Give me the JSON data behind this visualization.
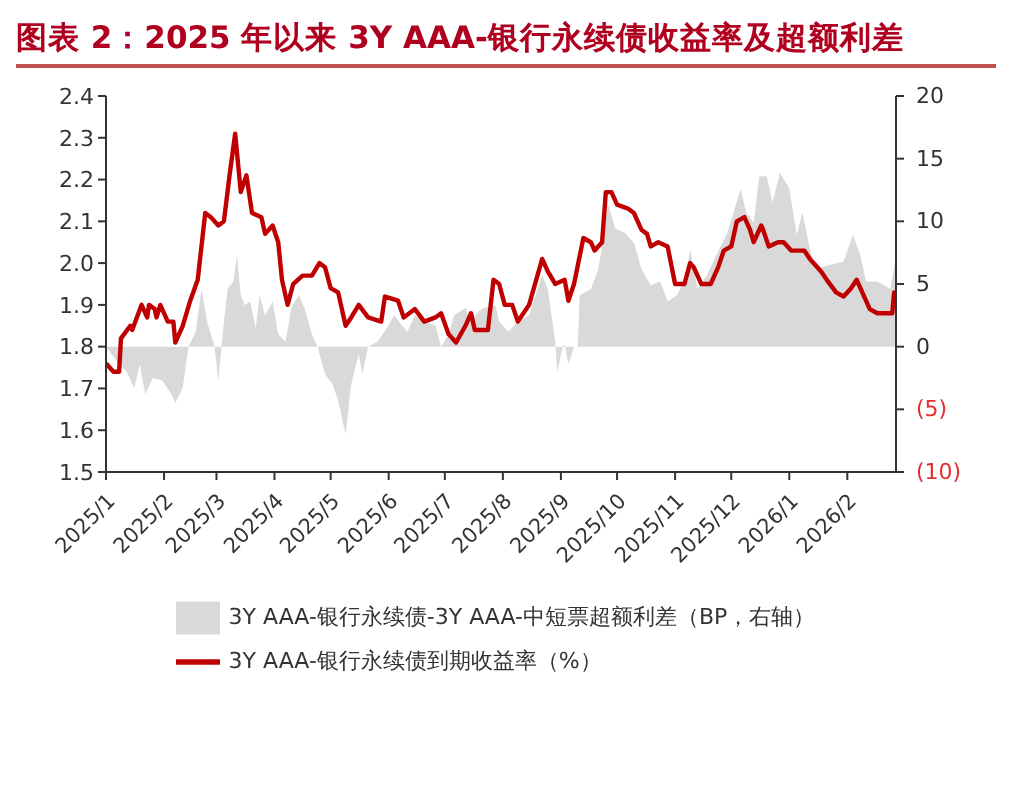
{
  "chart_data": {
    "type": "line",
    "title": "图表 2：2025 年以来 3Y AAA-银行永续债收益率及超额利差",
    "legend": "bottom",
    "marker": "none",
    "line_style": "solid",
    "grid": false,
    "xlim": [
      "2025-01-01",
      "2026-02-27"
    ],
    "xticks": [
      {
        "value": "2025-01-01",
        "label": "2025/1"
      },
      {
        "value": "2025-02-01",
        "label": "2025/2"
      },
      {
        "value": "2025-03-01",
        "label": "2025/3"
      },
      {
        "value": "2025-04-01",
        "label": "2025/4"
      },
      {
        "value": "2025-05-01",
        "label": "2025/5"
      },
      {
        "value": "2025-06-01",
        "label": "2025/6"
      },
      {
        "value": "2025-07-01",
        "label": "2025/7"
      },
      {
        "value": "2025-08-01",
        "label": "2025/8"
      },
      {
        "value": "2025-09-01",
        "label": "2025/9"
      },
      {
        "value": "2025-10-01",
        "label": "2025/10"
      },
      {
        "value": "2025-11-01",
        "label": "2025/11"
      },
      {
        "value": "2025-12-01",
        "label": "2025/12"
      },
      {
        "value": "2026-01-01",
        "label": "2026/1"
      },
      {
        "value": "2026-02-01",
        "label": "2026/2"
      }
    ],
    "ylim": [
      1.5,
      2.4
    ],
    "yticks": [
      1.5,
      1.6,
      1.7,
      1.8,
      1.9,
      {
        "value": 2,
        "label": "2.0"
      },
      2.1,
      2.2,
      2.3,
      2.4
    ],
    "y2lim": [
      -10,
      20
    ],
    "y2ticks": [
      {
        "value": -10,
        "label": "(10)"
      },
      {
        "value": -5,
        "label": "(5)"
      },
      0,
      5,
      10,
      15,
      20
    ],
    "series": [
      {
        "name": "3Y AAA-银行永续债-3Y AAA-中短票超额利差（BP，右轴）",
        "type": "area",
        "axis": "y2",
        "color": "#d9d9d9",
        "x": [
          "2025-01-01",
          "2025-01-07",
          "2025-01-12",
          "2025-01-16",
          "2025-01-19",
          "2025-01-22",
          "2025-01-26",
          "2025-01-31",
          "2025-02-05",
          "2025-02-07",
          "2025-02-11",
          "2025-02-14",
          "2025-02-18",
          "2025-02-21",
          "2025-02-24",
          "2025-02-26",
          "2025-02-28",
          "2025-03-02",
          "2025-03-05",
          "2025-03-07",
          "2025-03-10",
          "2025-03-12",
          "2025-03-14",
          "2025-03-16",
          "2025-03-19",
          "2025-03-22",
          "2025-03-24",
          "2025-03-27",
          "2025-03-31",
          "2025-04-03",
          "2025-04-07",
          "2025-04-10",
          "2025-04-14",
          "2025-04-17",
          "2025-04-21",
          "2025-04-24",
          "2025-04-28",
          "2025-05-02",
          "2025-05-05",
          "2025-05-09",
          "2025-05-12",
          "2025-05-16",
          "2025-05-18",
          "2025-05-21",
          "2025-05-26",
          "2025-06-01",
          "2025-06-04",
          "2025-06-08",
          "2025-06-11",
          "2025-06-15",
          "2025-06-20",
          "2025-06-26",
          "2025-06-29",
          "2025-07-03",
          "2025-07-06",
          "2025-07-12",
          "2025-07-15",
          "2025-07-19",
          "2025-07-22",
          "2025-07-28",
          "2025-07-30",
          "2025-08-04",
          "2025-08-09",
          "2025-08-15",
          "2025-08-18",
          "2025-08-22",
          "2025-08-25",
          "2025-08-29",
          "2025-08-30",
          "2025-09-02",
          "2025-09-03",
          "2025-09-05",
          "2025-09-08",
          "2025-09-10",
          "2025-09-11",
          "2025-09-17",
          "2025-09-21",
          "2025-09-24",
          "2025-09-26",
          "2025-09-30",
          "2025-10-05",
          "2025-10-10",
          "2025-10-14",
          "2025-10-19",
          "2025-10-24",
          "2025-10-28",
          "2025-11-02",
          "2025-11-07",
          "2025-11-09",
          "2025-11-13",
          "2025-11-18",
          "2025-11-23",
          "2025-11-29",
          "2025-12-06",
          "2025-12-09",
          "2025-12-13",
          "2025-12-16",
          "2025-12-20",
          "2025-12-23",
          "2025-12-27",
          "2026-01-01",
          "2026-01-05",
          "2026-01-08",
          "2026-01-12",
          "2026-01-15",
          "2026-01-22",
          "2026-01-30",
          "2026-02-04",
          "2026-02-08",
          "2026-02-11",
          "2026-02-17",
          "2026-02-24",
          "2026-02-27"
        ],
        "values": [
          0,
          -1.2,
          -2,
          -3.3,
          -1.4,
          -3.8,
          -2.5,
          -2.7,
          -3.8,
          -4.5,
          -3.3,
          0,
          1.2,
          4.6,
          2,
          1,
          0,
          -2.7,
          2,
          4.6,
          5.2,
          7.3,
          4.1,
          3.3,
          3.6,
          1.5,
          4.1,
          2.5,
          3.6,
          1,
          0.4,
          3.1,
          4.1,
          3.1,
          1,
          0,
          -2.2,
          -3,
          -4.3,
          -7,
          -3,
          -0.6,
          -2.2,
          0,
          0.4,
          1.7,
          2.5,
          1.7,
          1.2,
          2.5,
          2,
          1.7,
          0,
          1,
          2.5,
          3.1,
          2,
          2.8,
          3.1,
          3.3,
          2,
          1.2,
          2,
          2.5,
          3.9,
          5.7,
          4.6,
          0.4,
          -2,
          0,
          0.2,
          -1.4,
          0,
          0,
          4.1,
          4.6,
          6.2,
          8.9,
          11.5,
          9.4,
          9.1,
          8.3,
          6.2,
          4.9,
          5.2,
          3.6,
          4.1,
          5.7,
          7.8,
          4.6,
          5.7,
          7.3,
          9.1,
          12.6,
          10.7,
          9.9,
          13.6,
          13.6,
          11.5,
          13.9,
          12.6,
          8.9,
          10.7,
          7.8,
          6.2,
          6.5,
          6.8,
          8.9,
          7.3,
          5.2,
          5.2,
          4.6,
          7.3
        ]
      },
      {
        "name": "3Y AAA-银行永续债到期收益率（%）",
        "type": "line",
        "color": "#c00000",
        "x": [
          "2025-01-01",
          "2025-01-05",
          "2025-01-08",
          "2025-01-09",
          "2025-01-14",
          "2025-01-15",
          "2025-01-20",
          "2025-01-23",
          "2025-01-24",
          "2025-01-27",
          "2025-01-28",
          "2025-01-30",
          "2025-02-03",
          "2025-02-06",
          "2025-02-07",
          "2025-02-11",
          "2025-02-15",
          "2025-02-19",
          "2025-02-23",
          "2025-02-26",
          "2025-03-02",
          "2025-03-05",
          "2025-03-08",
          "2025-03-11",
          "2025-03-14",
          "2025-03-17",
          "2025-03-20",
          "2025-03-25",
          "2025-03-27",
          "2025-03-31",
          "2025-04-03",
          "2025-04-05",
          "2025-04-08",
          "2025-04-11",
          "2025-04-16",
          "2025-04-21",
          "2025-04-25",
          "2025-04-28",
          "2025-05-01",
          "2025-05-05",
          "2025-05-09",
          "2025-05-12",
          "2025-05-16",
          "2025-05-21",
          "2025-05-28",
          "2025-05-30",
          "2025-06-06",
          "2025-06-09",
          "2025-06-15",
          "2025-06-20",
          "2025-06-26",
          "2025-06-29",
          "2025-07-03",
          "2025-07-07",
          "2025-07-12",
          "2025-07-15",
          "2025-07-17",
          "2025-07-24",
          "2025-07-27",
          "2025-07-30",
          "2025-08-02",
          "2025-08-06",
          "2025-08-09",
          "2025-08-15",
          "2025-08-22",
          "2025-08-25",
          "2025-08-29",
          "2025-09-03",
          "2025-09-05",
          "2025-09-08",
          "2025-09-13",
          "2025-09-17",
          "2025-09-19",
          "2025-09-23",
          "2025-09-25",
          "2025-09-28",
          "2025-10-01",
          "2025-10-07",
          "2025-10-10",
          "2025-10-14",
          "2025-10-17",
          "2025-10-19",
          "2025-10-23",
          "2025-10-28",
          "2025-11-01",
          "2025-11-06",
          "2025-11-09",
          "2025-11-11",
          "2025-11-15",
          "2025-11-20",
          "2025-11-24",
          "2025-11-27",
          "2025-12-01",
          "2025-12-04",
          "2025-12-08",
          "2025-12-11",
          "2025-12-13",
          "2025-12-17",
          "2025-12-18",
          "2025-12-21",
          "2025-12-26",
          "2025-12-29",
          "2026-01-02",
          "2026-01-09",
          "2026-01-12",
          "2026-01-18",
          "2026-01-21",
          "2026-01-26",
          "2026-01-30",
          "2026-02-03",
          "2026-02-06",
          "2026-02-09",
          "2026-02-13",
          "2026-02-17",
          "2026-02-24",
          "2026-02-25",
          "2026-02-26",
          "2026-02-27"
        ],
        "values": [
          1.76,
          1.74,
          1.74,
          1.82,
          1.85,
          1.84,
          1.9,
          1.87,
          1.9,
          1.89,
          1.87,
          1.9,
          1.86,
          1.86,
          1.81,
          1.85,
          1.91,
          1.96,
          2.12,
          2.11,
          2.09,
          2.1,
          2.21,
          2.31,
          2.17,
          2.21,
          2.12,
          2.11,
          2.07,
          2.09,
          2.05,
          1.96,
          1.9,
          1.95,
          1.97,
          1.97,
          2,
          1.99,
          1.94,
          1.93,
          1.85,
          1.87,
          1.9,
          1.87,
          1.86,
          1.92,
          1.91,
          1.87,
          1.89,
          1.86,
          1.87,
          1.88,
          1.83,
          1.81,
          1.85,
          1.88,
          1.84,
          1.84,
          1.96,
          1.95,
          1.9,
          1.9,
          1.86,
          1.9,
          2.01,
          1.98,
          1.95,
          1.96,
          1.91,
          1.95,
          2.06,
          2.05,
          2.03,
          2.05,
          2.17,
          2.17,
          2.14,
          2.13,
          2.12,
          2.08,
          2.07,
          2.04,
          2.05,
          2.04,
          1.95,
          1.95,
          2,
          1.99,
          1.95,
          1.95,
          1.99,
          2.03,
          2.04,
          2.1,
          2.11,
          2.08,
          2.05,
          2.09,
          2.08,
          2.04,
          2.05,
          2.05,
          2.03,
          2.03,
          2.01,
          1.98,
          1.96,
          1.93,
          1.92,
          1.94,
          1.96,
          1.93,
          1.89,
          1.88,
          1.88,
          1.88,
          1.93,
          1.91
        ]
      }
    ]
  }
}
